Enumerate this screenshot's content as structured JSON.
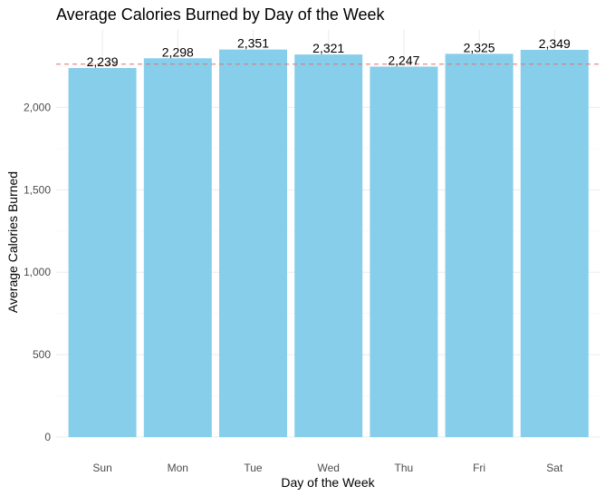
{
  "chart_data": {
    "type": "bar",
    "title": "Average Calories Burned by Day of the Week",
    "xlabel": "Day of the Week",
    "ylabel": "Average Calories Burned",
    "categories": [
      "Sun",
      "Mon",
      "Tue",
      "Wed",
      "Thu",
      "Fri",
      "Sat"
    ],
    "values": [
      2239,
      2298,
      2351,
      2321,
      2247,
      2325,
      2349
    ],
    "data_labels": [
      "2,239",
      "2,298",
      "2,351",
      "2,321",
      "2,247",
      "2,325",
      "2,349"
    ],
    "ylim": [
      0,
      2470
    ],
    "yticks": [
      0,
      500,
      1000,
      1500,
      2000
    ],
    "ytick_labels": [
      "0",
      "500",
      "1,000",
      "1,500",
      "2,000"
    ],
    "reference_line": {
      "value": 2262,
      "style": "dashed"
    },
    "grid": true,
    "legend": "none",
    "colors": {
      "bar": "#87CEEB",
      "reference_line": "#E07070",
      "grid_major": "#EBEBEB",
      "grid_minor": "#F4F4F4"
    }
  }
}
